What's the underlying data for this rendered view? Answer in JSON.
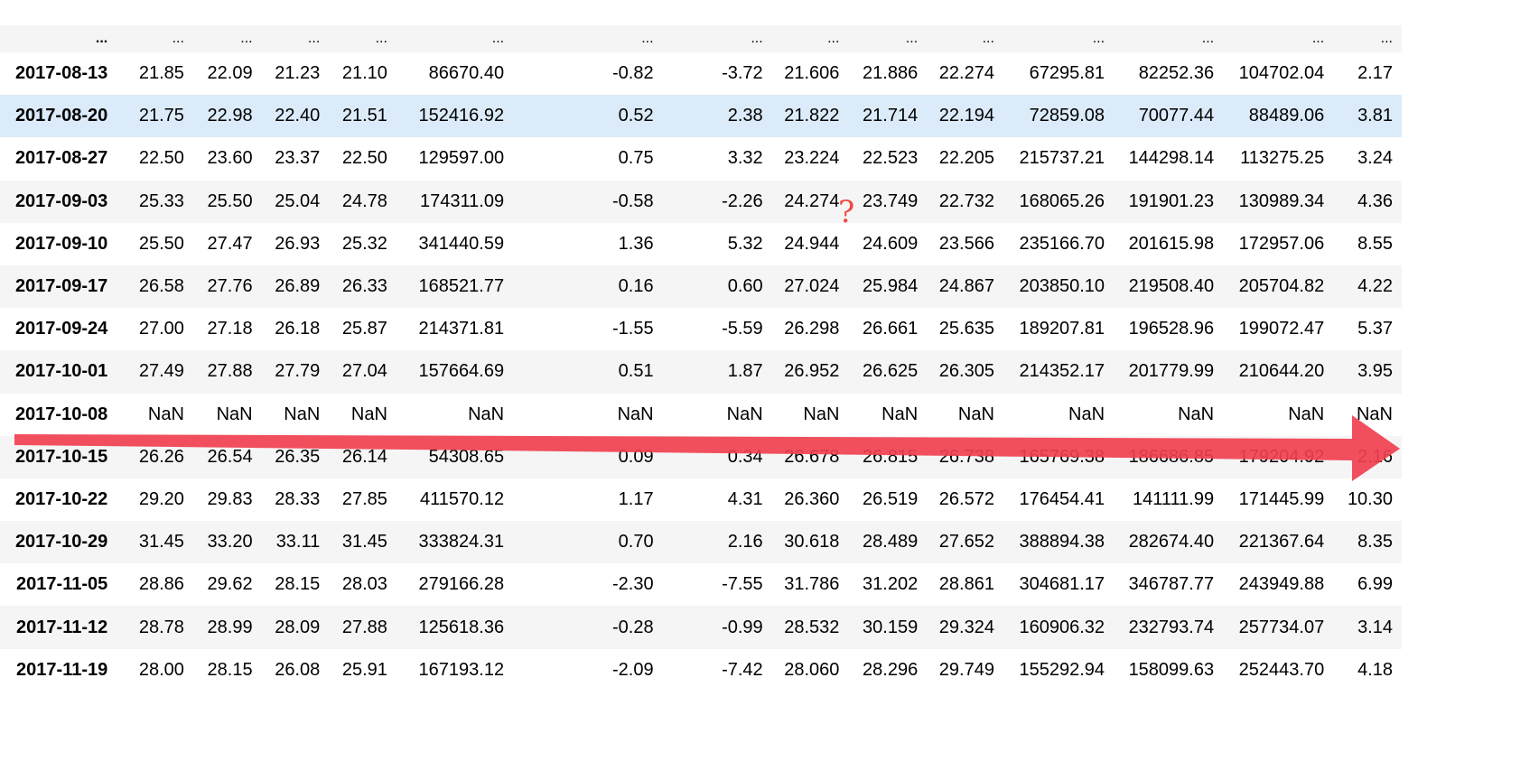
{
  "table": {
    "ellipsis_row": [
      "...",
      "...",
      "...",
      "...",
      "...",
      "...",
      "...",
      "...",
      "...",
      "...",
      "...",
      "...",
      "...",
      "...",
      "..."
    ],
    "rows": [
      {
        "date": "2017-08-13",
        "cells": [
          "21.85",
          "22.09",
          "21.23",
          "21.10",
          "86670.40",
          "-0.82",
          "-3.72",
          "21.606",
          "21.886",
          "22.274",
          "67295.81",
          "82252.36",
          "104702.04",
          "2.17"
        ]
      },
      {
        "date": "2017-08-20",
        "cells": [
          "21.75",
          "22.98",
          "22.40",
          "21.51",
          "152416.92",
          "0.52",
          "2.38",
          "21.822",
          "21.714",
          "22.194",
          "72859.08",
          "70077.44",
          "88489.06",
          "3.81"
        ]
      },
      {
        "date": "2017-08-27",
        "cells": [
          "22.50",
          "23.60",
          "23.37",
          "22.50",
          "129597.00",
          "0.75",
          "3.32",
          "23.224",
          "22.523",
          "22.205",
          "215737.21",
          "144298.14",
          "113275.25",
          "3.24"
        ]
      },
      {
        "date": "2017-09-03",
        "cells": [
          "25.33",
          "25.50",
          "25.04",
          "24.78",
          "174311.09",
          "-0.58",
          "-2.26",
          "24.274",
          "23.749",
          "22.732",
          "168065.26",
          "191901.23",
          "130989.34",
          "4.36"
        ]
      },
      {
        "date": "2017-09-10",
        "cells": [
          "25.50",
          "27.47",
          "26.93",
          "25.32",
          "341440.59",
          "1.36",
          "5.32",
          "24.944",
          "24.609",
          "23.566",
          "235166.70",
          "201615.98",
          "172957.06",
          "8.55"
        ]
      },
      {
        "date": "2017-09-17",
        "cells": [
          "26.58",
          "27.76",
          "26.89",
          "26.33",
          "168521.77",
          "0.16",
          "0.60",
          "27.024",
          "25.984",
          "24.867",
          "203850.10",
          "219508.40",
          "205704.82",
          "4.22"
        ]
      },
      {
        "date": "2017-09-24",
        "cells": [
          "27.00",
          "27.18",
          "26.18",
          "25.87",
          "214371.81",
          "-1.55",
          "-5.59",
          "26.298",
          "26.661",
          "25.635",
          "189207.81",
          "196528.96",
          "199072.47",
          "5.37"
        ]
      },
      {
        "date": "2017-10-01",
        "cells": [
          "27.49",
          "27.88",
          "27.79",
          "27.04",
          "157664.69",
          "0.51",
          "1.87",
          "26.952",
          "26.625",
          "26.305",
          "214352.17",
          "201779.99",
          "210644.20",
          "3.95"
        ]
      },
      {
        "date": "2017-10-08",
        "cells": [
          "NaN",
          "NaN",
          "NaN",
          "NaN",
          "NaN",
          "NaN",
          "NaN",
          "NaN",
          "NaN",
          "NaN",
          "NaN",
          "NaN",
          "NaN",
          "NaN"
        ]
      },
      {
        "date": "2017-10-15",
        "cells": [
          "26.26",
          "26.54",
          "26.35",
          "26.14",
          "54308.65",
          "0.09",
          "0.34",
          "26.678",
          "26.815",
          "26.738",
          "165769.38",
          "186686.85",
          "179204.92",
          "2.16"
        ]
      },
      {
        "date": "2017-10-22",
        "cells": [
          "29.20",
          "29.83",
          "28.33",
          "27.85",
          "411570.12",
          "1.17",
          "4.31",
          "26.360",
          "26.519",
          "26.572",
          "176454.41",
          "141111.99",
          "171445.99",
          "10.30"
        ]
      },
      {
        "date": "2017-10-29",
        "cells": [
          "31.45",
          "33.20",
          "33.11",
          "31.45",
          "333824.31",
          "0.70",
          "2.16",
          "30.618",
          "28.489",
          "27.652",
          "388894.38",
          "282674.40",
          "221367.64",
          "8.35"
        ]
      },
      {
        "date": "2017-11-05",
        "cells": [
          "28.86",
          "29.62",
          "28.15",
          "28.03",
          "279166.28",
          "-2.30",
          "-7.55",
          "31.786",
          "31.202",
          "28.861",
          "304681.17",
          "346787.77",
          "243949.88",
          "6.99"
        ]
      },
      {
        "date": "2017-11-12",
        "cells": [
          "28.78",
          "28.99",
          "28.09",
          "27.88",
          "125618.36",
          "-0.28",
          "-0.99",
          "28.532",
          "30.159",
          "29.324",
          "160906.32",
          "232793.74",
          "257734.07",
          "3.14"
        ]
      },
      {
        "date": "2017-11-19",
        "cells": [
          "28.00",
          "28.15",
          "26.08",
          "25.91",
          "167193.12",
          "-2.09",
          "-7.42",
          "28.060",
          "28.296",
          "29.749",
          "155292.94",
          "158099.63",
          "252443.70",
          "4.18"
        ]
      }
    ]
  },
  "annotations": {
    "question_mark": "?",
    "arrow_color": "#f0404f",
    "question_color": "#f0473f",
    "highlight_row_color": "#dcebf9",
    "highlight_row_index": 1
  }
}
